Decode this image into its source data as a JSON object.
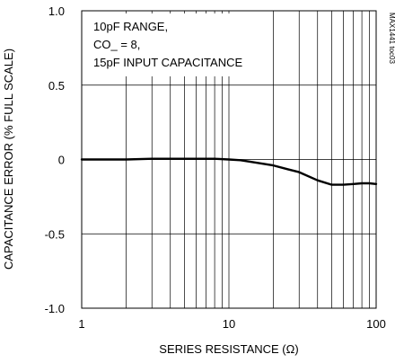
{
  "chart_data": {
    "type": "line",
    "title": "",
    "xlabel": "SERIES RESISTANCE (Ω)",
    "ylabel": "CAPACITANCE ERROR (% FULL SCALE)",
    "x_scale": "log",
    "xlim": [
      1,
      100
    ],
    "ylim": [
      -1.0,
      1.0
    ],
    "x_ticks": [
      1,
      10,
      100
    ],
    "x_tick_labels": [
      "1",
      "10",
      "100"
    ],
    "y_ticks": [
      1.0,
      0.5,
      0,
      -0.5,
      -1.0
    ],
    "y_tick_labels": [
      "1.0",
      "0.5",
      "0",
      "-0.5",
      "-1.0"
    ],
    "grid": true,
    "annotations": [
      "10pF RANGE,",
      "CO_ = 8,",
      "15pF INPUT CAPACITANCE"
    ],
    "figure_id": "MAX1441 toc03",
    "series": [
      {
        "x": [
          1,
          2,
          3,
          5,
          8,
          10,
          12,
          15,
          20,
          25,
          30,
          40,
          50,
          60,
          70,
          80,
          90,
          100
        ],
        "values": [
          0.0,
          0.0,
          0.005,
          0.005,
          0.005,
          0.0,
          -0.005,
          -0.02,
          -0.04,
          -0.065,
          -0.085,
          -0.14,
          -0.17,
          -0.17,
          -0.165,
          -0.16,
          -0.16,
          -0.165
        ]
      }
    ]
  }
}
